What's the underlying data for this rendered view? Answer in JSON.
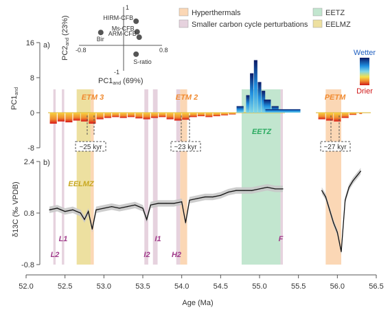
{
  "chart_data": {
    "type": "line",
    "xlabel": "Age (Ma)",
    "xlim": [
      52.0,
      56.5
    ],
    "xticks": [
      "52.0",
      "52.5",
      "53.0",
      "53.5",
      "54.0",
      "54.5",
      "55.0",
      "55.5",
      "56.0",
      "56.5"
    ],
    "panel_a": {
      "label": "a)",
      "ylabel": "PC1",
      "ylabel_sub": "and",
      "ylim": [
        -10,
        16
      ],
      "yticks": [
        "16",
        "8",
        "0",
        "-8"
      ],
      "colorbar": {
        "top": "Wetter",
        "bottom": "Drier"
      },
      "series": [
        {
          "x": [
            52.35,
            52.45,
            52.55,
            52.65,
            52.75,
            52.85,
            52.95,
            53.05,
            53.15,
            53.25,
            53.35,
            53.45,
            53.55,
            53.65,
            53.75,
            53.85,
            53.95,
            54.05,
            54.15,
            54.25,
            54.35,
            54.45,
            54.55,
            54.65,
            54.75,
            54.85,
            54.9,
            54.95,
            55.0,
            55.05,
            55.1,
            55.2,
            55.3,
            55.8,
            55.9,
            56.0,
            56.1,
            56.2,
            56.3
          ],
          "y": [
            -2.5,
            -2.0,
            -2.2,
            -1.8,
            -2.0,
            -2.5,
            -1.5,
            -1.2,
            -1.0,
            -1.2,
            -1.0,
            -1.3,
            -1.5,
            -1.2,
            -1.0,
            -1.5,
            -1.8,
            -1.6,
            -1.0,
            -0.8,
            -1.0,
            -0.8,
            -0.6,
            -0.4,
            1.5,
            4,
            9,
            12,
            7,
            5,
            3,
            1.5,
            0.8,
            -1.5,
            -1.8,
            -2.0,
            -1.2,
            -0.5,
            -0.3
          ]
        }
      ]
    },
    "panel_b": {
      "label": "b)",
      "ylabel": "δ13C (‰ VPDB)",
      "ylim": [
        -0.8,
        2.4
      ],
      "yticks": [
        "2.4",
        "0.8",
        "-0.8"
      ],
      "series": [
        {
          "x": [
            52.3,
            52.4,
            52.5,
            52.6,
            52.7,
            52.75,
            52.8,
            52.85,
            52.9,
            53.0,
            53.1,
            53.2,
            53.3,
            53.4,
            53.5,
            53.55,
            53.6,
            53.7,
            53.8,
            53.9,
            54.0,
            54.05,
            54.1,
            54.2,
            54.3,
            54.4,
            54.5,
            54.6,
            54.7,
            54.8,
            54.9,
            55.0,
            55.1,
            55.2,
            55.3
          ],
          "y": [
            0.9,
            0.95,
            0.85,
            0.9,
            0.8,
            0.6,
            0.85,
            0.3,
            0.9,
            0.95,
            1.0,
            0.95,
            1.0,
            1.05,
            0.95,
            0.6,
            1.05,
            1.1,
            1.1,
            1.1,
            1.15,
            0.5,
            1.2,
            1.25,
            1.3,
            1.3,
            1.35,
            1.45,
            1.5,
            1.5,
            1.5,
            1.55,
            1.6,
            1.55,
            1.55
          ]
        },
        {
          "x": [
            55.8,
            55.85,
            55.9,
            55.95,
            56.0,
            56.05,
            56.1,
            56.15,
            56.2,
            56.25,
            56.3
          ],
          "y": [
            1.5,
            1.3,
            0.9,
            0.5,
            0.2,
            -0.4,
            1.2,
            1.6,
            1.8,
            1.95,
            2.1
          ]
        }
      ]
    },
    "bands": [
      {
        "type": "smaller",
        "from": 52.35,
        "to": 52.38
      },
      {
        "type": "smaller",
        "from": 52.46,
        "to": 52.49
      },
      {
        "type": "eelmz",
        "from": 52.65,
        "to": 52.83
      },
      {
        "type": "hyper",
        "from": 52.83,
        "to": 52.87
      },
      {
        "type": "smaller",
        "from": 53.52,
        "to": 53.57
      },
      {
        "type": "smaller",
        "from": 53.63,
        "to": 53.69
      },
      {
        "type": "smaller",
        "from": 53.93,
        "to": 53.98
      },
      {
        "type": "hyper",
        "from": 53.98,
        "to": 54.07
      },
      {
        "type": "eetz",
        "from": 54.77,
        "to": 55.27
      },
      {
        "type": "smaller",
        "from": 55.27,
        "to": 55.3
      },
      {
        "type": "hyper",
        "from": 55.85,
        "to": 56.05
      }
    ],
    "legend": [
      {
        "label": "Hyperthermals",
        "color": "#fbd7b5"
      },
      {
        "label": "Smaller carbon cycle perturbations",
        "color": "#e6d2de"
      },
      {
        "label": "EETZ",
        "color": "#c2e6cf"
      },
      {
        "label": "EELMZ",
        "color": "#ede0a0"
      }
    ],
    "annotations": {
      "etm3": "ETM 3",
      "etm2": "ETM 2",
      "petm": "PETM",
      "eetz": "EETZ",
      "eelmz": "EELMZ",
      "k25": "~25 kyr",
      "k23": "~23 kyr",
      "k27": "~27 kyr",
      "l2": "L2",
      "l1": "L1",
      "i2": "I2",
      "i1": "I1",
      "h2": "H2",
      "f": "F"
    },
    "inset": {
      "ylabel": "PC2",
      "ylabel_sub": "and",
      "ylabel_pct": "(23%)",
      "xlabel": "PC1",
      "xlabel_sub": "and",
      "xlabel_pct": "(69%)",
      "ticks": {
        "x_min": "-0.8",
        "x_max": "0.8",
        "y_max": "1",
        "y_min": "-1"
      },
      "points": [
        {
          "label": "HIRM-CFB",
          "x": 0.3,
          "y": 0.55
        },
        {
          "label": "Bir",
          "x": -0.38,
          "y": 0.2
        },
        {
          "label": "Ms-CFB",
          "x": 0.32,
          "y": 0.22
        },
        {
          "label": "ARM-CFB",
          "x": 0.36,
          "y": 0.05
        },
        {
          "label": "S-ratio",
          "x": 0.3,
          "y": -0.48
        }
      ]
    }
  }
}
